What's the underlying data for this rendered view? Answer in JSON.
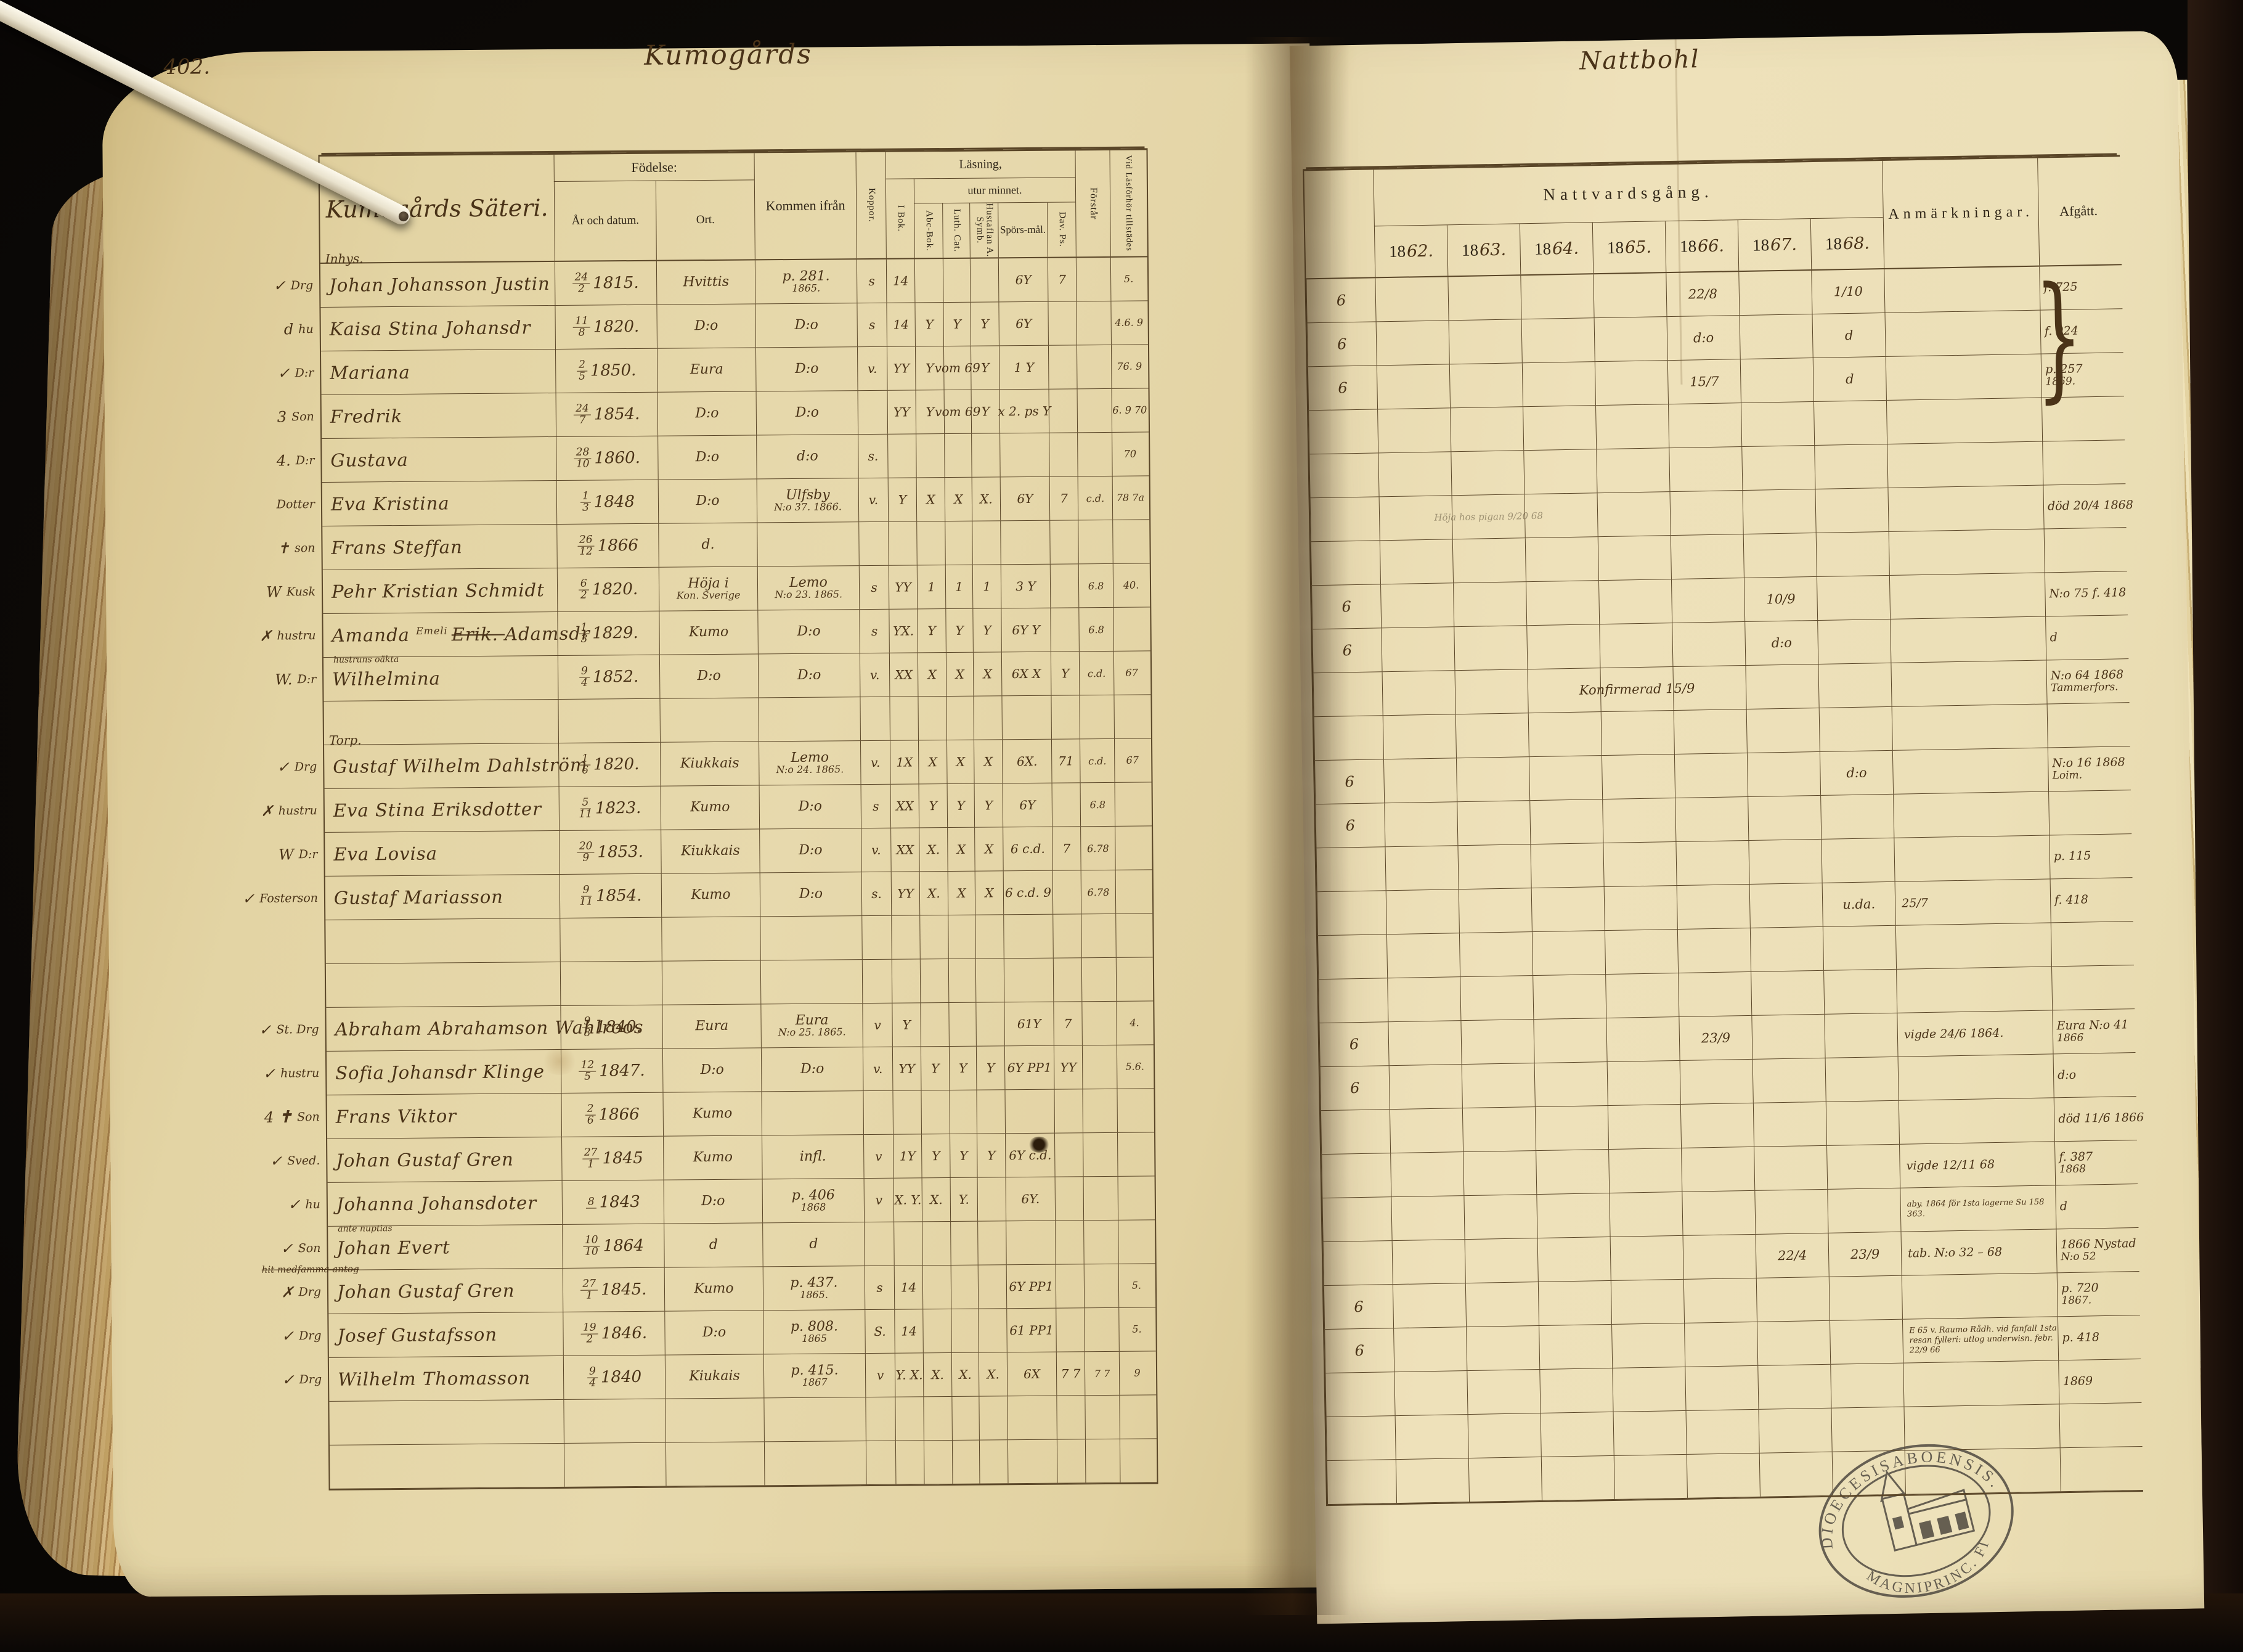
{
  "photo": {
    "page_number": "402.",
    "left_title_script": "Kumogårds",
    "right_title_script": "Nattbohl"
  },
  "left_table": {
    "household_title": "Kumogårds Säteri.",
    "fodelse": "Födelse:",
    "ar_datum": "År och datum.",
    "ort": "Ort.",
    "kommen": "Kommen ifrån",
    "koppor": "Koppor.",
    "lasning": "Läsning,",
    "utur_minnet": "utur minnet.",
    "i_bok": "I Bok.",
    "abc_bok": "Abc-Bok.",
    "luth_cat": "Luth. Cat.",
    "hustaflan": "Hustaflan A. Symb.",
    "sporsmal": "Spörs-mål.",
    "dav_ps": "Dav. Ps.",
    "forstar": "Förstår",
    "vid_lasforhor": "Vid Läsförhör tillstädes"
  },
  "right_table": {
    "nattvardsgang_label": "Nattvardsgång.",
    "year_prefix": "18",
    "year_digits": [
      "62.",
      "63.",
      "64.",
      "65.",
      "66.",
      "67.",
      "68."
    ],
    "anmarkningar_label": "Anmärkningar.",
    "afgatt_label": "Afgått.",
    "brace": "}"
  },
  "stamp": {
    "top_text": "DIOECESISABOENSIS.",
    "bottom_text": "MAGNIPRINC. FINL.",
    "icon": "church-icon"
  },
  "rows": [
    {
      "chk": "✓",
      "g": "Inhys.",
      "role": "Drg",
      "name": "Johan Johansson Justin",
      "bd": "24/2",
      "by": "1815.",
      "ort": "Hvittis",
      "from": "p. 281.",
      "from2": "1865.",
      "m": [
        "s",
        "14",
        "",
        "",
        "",
        "6Y",
        "7"
      ],
      "vid": "5.",
      "pre": "6",
      "natt": {
        "1866": "22/8",
        "1868": "1/10"
      },
      "afg": "f. 725"
    },
    {
      "chk": "d",
      "role": "hu",
      "name": "Kaisa Stina Johansdr",
      "bd": "11/8",
      "by": "1820.",
      "ort": "D:o",
      "from": "D:o",
      "m": [
        "s",
        "14",
        "Y",
        "Y",
        "Y",
        "6Y",
        ""
      ],
      "vid": "4.6. 9",
      "pre": "6",
      "natt": {
        "1866": "d:o",
        "1868": "d"
      },
      "afg": "f. 924"
    },
    {
      "chk": "✓",
      "role": "D:r",
      "name": "Mariana",
      "bd": "2/5",
      "by": "1850.",
      "ort": "Eura",
      "from": "D:o",
      "m": [
        "v.",
        "YY",
        "Y",
        "vom 69",
        "Y",
        "1 Y",
        ""
      ],
      "vid": "76. 9",
      "pre": "6",
      "natt": {
        "1866": "15/7",
        "1868": "d"
      },
      "afg": "p. 257",
      "afg2": "1869."
    },
    {
      "chk": "3",
      "role": "Son",
      "name": "Fredrik",
      "bd": "24/7",
      "by": "1854.",
      "ort": "D:o",
      "from": "D:o",
      "m": [
        "",
        "YY",
        "Y",
        "vom 69",
        "Y",
        "x 2. ps Y",
        ""
      ],
      "vid": "6. 9 70"
    },
    {
      "chk": "4.",
      "role": "D:r",
      "name": "Gustava",
      "bd": "28/10",
      "by": "1860.",
      "ort": "D:o",
      "from": "d:o",
      "m": [
        "s.",
        "",
        "",
        "",
        "",
        "",
        ""
      ],
      "vid": "70"
    },
    {
      "role": "Dotter",
      "name": "Eva Kristina",
      "bd": "1/3",
      "by": "1848",
      "ort": "D:o",
      "from": "Ulfsby",
      "from2": "N:o 37. 1866.",
      "m": [
        "v.",
        "Y",
        "X",
        "X",
        "X.",
        "6Y",
        "7"
      ],
      "fs": "c.d.",
      "vid": "78 7a",
      "nattp": {
        "1863": "Höja hos pigan 9/20 68"
      },
      "afg": "död 20/4 1868"
    },
    {
      "chk": "✝",
      "role": "son",
      "name": "Frans Steffan",
      "bd": "26/12",
      "by": "1866",
      "ort": "d."
    },
    {
      "chk": "W",
      "role": "Kusk",
      "name": "Pehr Kristian Schmidt",
      "bd": "6/2",
      "by": "1820.",
      "ort": "Höja i",
      "ort2": "Kon. Sverige",
      "from": "Lemo",
      "from2": "N:o 23. 1865.",
      "m": [
        "s",
        "YY",
        "1",
        "1",
        "1",
        "3 Y",
        ""
      ],
      "fs": "6.8",
      "vid": "40.",
      "pre": "6",
      "natt": {
        "1867": "10/9"
      },
      "afg": "N:o 75 f. 418"
    },
    {
      "chk": "✗",
      "role": "hustru",
      "name": "Amanda",
      "name_sup": "Emeli",
      "name_struck": "Erik.",
      "name_post": "Adamsdr",
      "bd": "1/3",
      "by": "1829.",
      "ort": "Kumo",
      "from": "D:o",
      "m": [
        "s",
        "YX.",
        "Y",
        "Y",
        "Y",
        "6Y Y",
        ""
      ],
      "fs": "6.8",
      "pre": "6",
      "natt": {
        "1867": "d:o"
      },
      "afg": "d"
    },
    {
      "chk": "W.",
      "role": "D:r",
      "note": "hustruns oäkta",
      "name": "Wilhelmina",
      "bd": "9/4",
      "by": "1852.",
      "ort": "D:o",
      "from": "D:o",
      "m": [
        "v.",
        "XX",
        "X",
        "X",
        "X",
        "6X X",
        "Y"
      ],
      "fs": "c.d.",
      "vid": "67",
      "natt": {
        "1865": "Konfirmerad 15/9"
      },
      "afg": "N:o 64 1868",
      "afg2": "Tammerfors."
    },
    {},
    {
      "chk": "✓",
      "g": "Torp.",
      "role": "Drg",
      "name": "Gustaf Wilhelm Dahlström",
      "bd": "1/6",
      "by": "1820.",
      "ort": "Kiukkais",
      "from": "Lemo",
      "from2": "N:o 24. 1865.",
      "m": [
        "v.",
        "1X",
        "X",
        "X",
        "X",
        "6X.",
        "71"
      ],
      "fs": "c.d.",
      "vid": "67",
      "pre": "6",
      "natt": {
        "1868": "d:o"
      },
      "afg": "N:o 16 1868",
      "afg2": "Loim."
    },
    {
      "chk": "✗",
      "role": "hustru",
      "name": "Eva Stina Eriksdotter",
      "bd": "5/11",
      "by": "1823.",
      "ort": "Kumo",
      "from": "D:o",
      "m": [
        "s",
        "XX",
        "Y",
        "Y",
        "Y",
        "6Y",
        ""
      ],
      "fs": "6.8",
      "pre": "6"
    },
    {
      "chk": "W",
      "role": "D:r",
      "name": "Eva Lovisa",
      "bd": "20/9",
      "by": "1853.",
      "ort": "Kiukkais",
      "from": "D:o",
      "m": [
        "v.",
        "XX",
        "X.",
        "X",
        "X",
        "6 c.d.",
        "7"
      ],
      "fs": "6.78",
      "afg": "p. 115"
    },
    {
      "chk": "✓",
      "role": "Fosterson",
      "name": "Gustaf Mariasson",
      "bd": "9/11",
      "by": "1854.",
      "ort": "Kumo",
      "from": "D:o",
      "m": [
        "s.",
        "YY",
        "X.",
        "X",
        "X",
        "6 c.d. 9",
        ""
      ],
      "fs": "6.78",
      "natt": {
        "1868": "u.da."
      },
      "anm": "25/7",
      "afg": "f. 418"
    },
    {},
    {},
    {
      "chk": "✓",
      "role": "St. Drg",
      "name": "Abraham Abrahamson Wahlroos",
      "bd": "9/8",
      "by": "1840.",
      "ort": "Eura",
      "from": "Eura",
      "from2": "N:o 25. 1865.",
      "m": [
        "v",
        "Y",
        "",
        "",
        "",
        "61Y",
        "7"
      ],
      "vid": "4.",
      "pre": "6",
      "natt": {
        "1866": "23/9"
      },
      "anm": "vigde 24/6 1864.",
      "afg": "Eura N:o 41",
      "afg2": "1866"
    },
    {
      "chk": "✓",
      "role": "hustru",
      "name": "Sofia Johansdr Klinge",
      "bd": "12/5",
      "by": "1847.",
      "ort": "D:o",
      "from": "D:o",
      "m": [
        "v.",
        "YY",
        "Y",
        "Y",
        "Y",
        "6Y PP1",
        "YY"
      ],
      "vid": "5.6.",
      "pre": "6",
      "afg": "d:o"
    },
    {
      "chk": "4",
      "cross": true,
      "role": "Son",
      "name": "Frans Viktor",
      "bd": "2/6",
      "by": "1866",
      "ort": "Kumo",
      "afg": "död 11/6 1866"
    },
    {
      "chk": "✓",
      "role": "Sved.",
      "name": "Johan Gustaf Gren",
      "bd": "27/1",
      "by": "1845",
      "ort": "Kumo",
      "from": "infl.",
      "m": [
        "v",
        "1Y",
        "Y",
        "Y",
        "Y",
        "6Y c.d.",
        ""
      ],
      "anm": "vigde 12/11 68",
      "afg": "f. 387",
      "afg2": "1868"
    },
    {
      "chk": "✓",
      "role": "hu",
      "name": "Johanna Johansdoter",
      "bd": "8",
      "by": "1843",
      "ort": "D:o",
      "from": "p. 406",
      "from2": "1868",
      "m": [
        "v",
        "X. Y.",
        "X.",
        "Y.",
        "",
        "6Y.",
        ""
      ],
      "anm": "aby. 1864 för 1sta lagerne Su 158 363.",
      "anm_sm": true,
      "afg": "d"
    },
    {
      "chk": "✓",
      "role": "Son",
      "note": "ante nuptias",
      "struck": "hit medfamma antog",
      "name": "Johan Evert",
      "bd": "10/10",
      "by": "1864",
      "ort": "d",
      "from": "d",
      "natt": {
        "1867": "22/4",
        "1868": "23/9"
      },
      "anm": "tab. N:o 32 – 68",
      "afg": "1866 Nystad",
      "afg2": "N:o 52"
    },
    {
      "chk": "✗",
      "role": "Drg",
      "name": "Johan Gustaf Gren",
      "bd": "27/1",
      "by": "1845.",
      "ort": "Kumo",
      "from": "p. 437.",
      "from2": "1865.",
      "m": [
        "s",
        "14",
        "",
        "",
        "",
        "6Y PP1",
        ""
      ],
      "vid": "5.",
      "pre": "6",
      "afg": "p. 720",
      "afg2": "1867."
    },
    {
      "chk": "✓",
      "role": "Drg",
      "name": "Josef Gustafsson",
      "bd": "19/2",
      "by": "1846.",
      "ort": "D:o",
      "from": "p. 808.",
      "from2": "1865",
      "m": [
        "S.",
        "14",
        "",
        "",
        "",
        "61 PP1",
        ""
      ],
      "vid": "5.",
      "pre": "6",
      "anm": "E 65 v. Raumo Rådh. vid fanfall 1sta resan fylleri: utlog underwisn. febr. 22/9 66",
      "anm_sm": true,
      "afg": "p. 418"
    },
    {
      "chk": "✓",
      "role": "Drg",
      "name": "Wilhelm Thomasson",
      "bd": "9/4",
      "by": "1840",
      "ort": "Kiukais",
      "from": "p. 415.",
      "from2": "1867",
      "m": [
        "v",
        "Y. X.",
        "X.",
        "X.",
        "X.",
        "6X",
        "7 7"
      ],
      "fs": "7 7",
      "vid": "9",
      "afg": "1869"
    },
    {},
    {}
  ]
}
